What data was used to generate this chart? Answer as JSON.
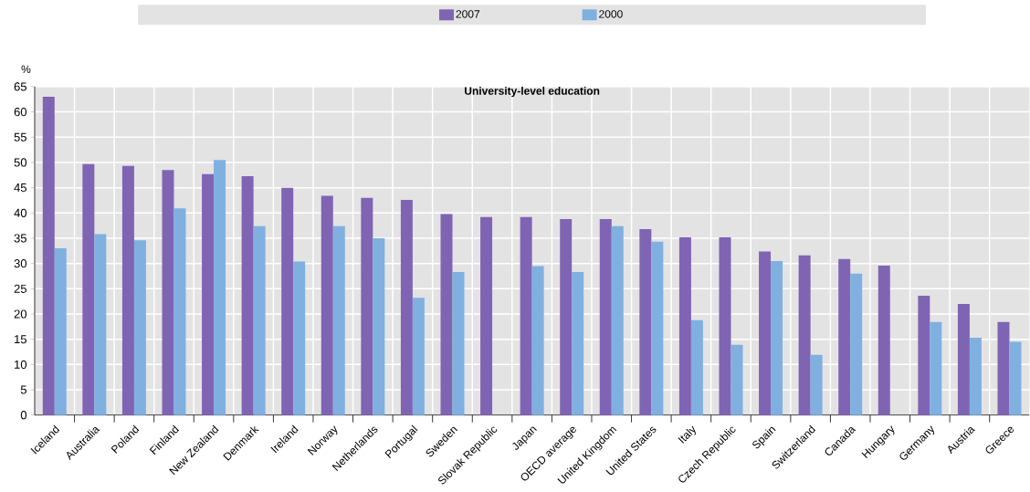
{
  "chart_data": {
    "type": "bar",
    "title": "University-level education",
    "ylabel": "%",
    "categories": [
      "Iceland",
      "Australia",
      "Poland",
      "Finland",
      "New Zealand",
      "Denmark",
      "Ireland",
      "Norway",
      "Netherlands",
      "Portugal",
      "Sweden",
      "Slovak Republic",
      "Japan",
      "OECD average",
      "United Kingdom",
      "United States",
      "Italy",
      "Czech Republic",
      "Spain",
      "Switzerland",
      "Canada",
      "Hungary",
      "Germany",
      "Austria",
      "Greece"
    ],
    "series": [
      {
        "name": "2007",
        "color": "#8064b4",
        "values": [
          63,
          49.7,
          49.3,
          48.5,
          47.7,
          47.3,
          45,
          43.4,
          43,
          42.6,
          39.8,
          39.2,
          39.2,
          38.8,
          38.8,
          36.8,
          35.2,
          35.2,
          32.4,
          31.6,
          30.9,
          29.6,
          23.6,
          22,
          18.4
        ]
      },
      {
        "name": "2000",
        "color": "#7fb0e0",
        "values": [
          33,
          35.8,
          34.6,
          40.9,
          50.5,
          37.4,
          30.4,
          37.4,
          35,
          23.2,
          28.3,
          null,
          29.5,
          28.3,
          37.4,
          34.3,
          18.8,
          13.9,
          30.5,
          11.9,
          28,
          null,
          18.4,
          15.3,
          14.5
        ]
      }
    ],
    "ylim": [
      0,
      65
    ],
    "yticks": [
      0,
      5,
      10,
      15,
      20,
      25,
      30,
      35,
      40,
      45,
      50,
      55,
      60,
      65
    ],
    "grid": true,
    "legend": "top"
  }
}
